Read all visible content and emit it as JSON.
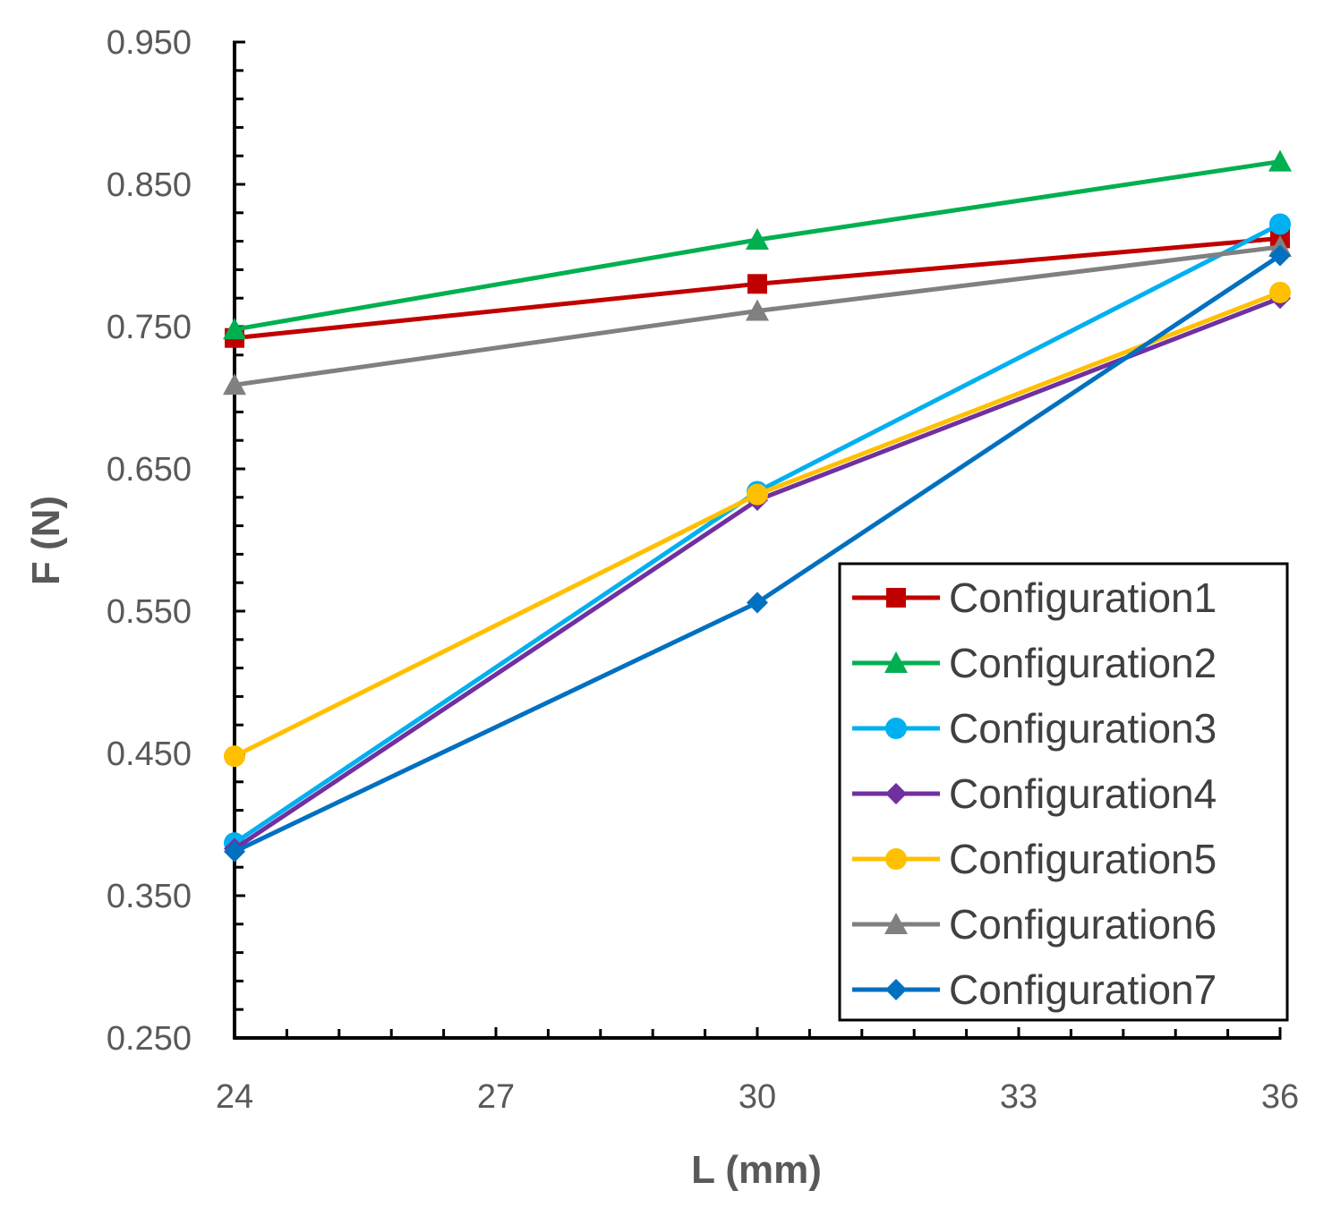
{
  "chart_data": {
    "type": "line",
    "title": "",
    "xlabel": "L (mm)",
    "ylabel": "F (N)",
    "x": [
      24,
      30,
      36
    ],
    "xlim": [
      24,
      36
    ],
    "ylim": [
      0.25,
      0.95
    ],
    "xticks": [
      24,
      27,
      30,
      33,
      36
    ],
    "xtick_labels": [
      "24",
      "27",
      "30",
      "33",
      "36"
    ],
    "yticks": [
      0.25,
      0.35,
      0.45,
      0.55,
      0.65,
      0.75,
      0.85,
      0.95
    ],
    "ytick_labels": [
      "0.250",
      "0.350",
      "0.450",
      "0.550",
      "0.650",
      "0.750",
      "0.850",
      "0.950"
    ],
    "grid": false,
    "legend_position": "bottom-right",
    "series": [
      {
        "name": "Configuration1",
        "values": [
          0.742,
          0.78,
          0.812
        ],
        "color": "#C00000",
        "marker": "square"
      },
      {
        "name": "Configuration2",
        "values": [
          0.748,
          0.811,
          0.866
        ],
        "color": "#00B050",
        "marker": "triangle"
      },
      {
        "name": "Configuration3",
        "values": [
          0.387,
          0.634,
          0.822
        ],
        "color": "#00B0F0",
        "marker": "circle"
      },
      {
        "name": "Configuration4",
        "values": [
          0.383,
          0.628,
          0.77
        ],
        "color": "#7030A0",
        "marker": "diamond"
      },
      {
        "name": "Configuration5",
        "values": [
          0.448,
          0.632,
          0.774
        ],
        "color": "#FFC000",
        "marker": "circle"
      },
      {
        "name": "Configuration6",
        "values": [
          0.709,
          0.761,
          0.806
        ],
        "color": "#808080",
        "marker": "triangle"
      },
      {
        "name": "Configuration7",
        "values": [
          0.381,
          0.556,
          0.8
        ],
        "color": "#0070C0",
        "marker": "diamond"
      }
    ]
  }
}
